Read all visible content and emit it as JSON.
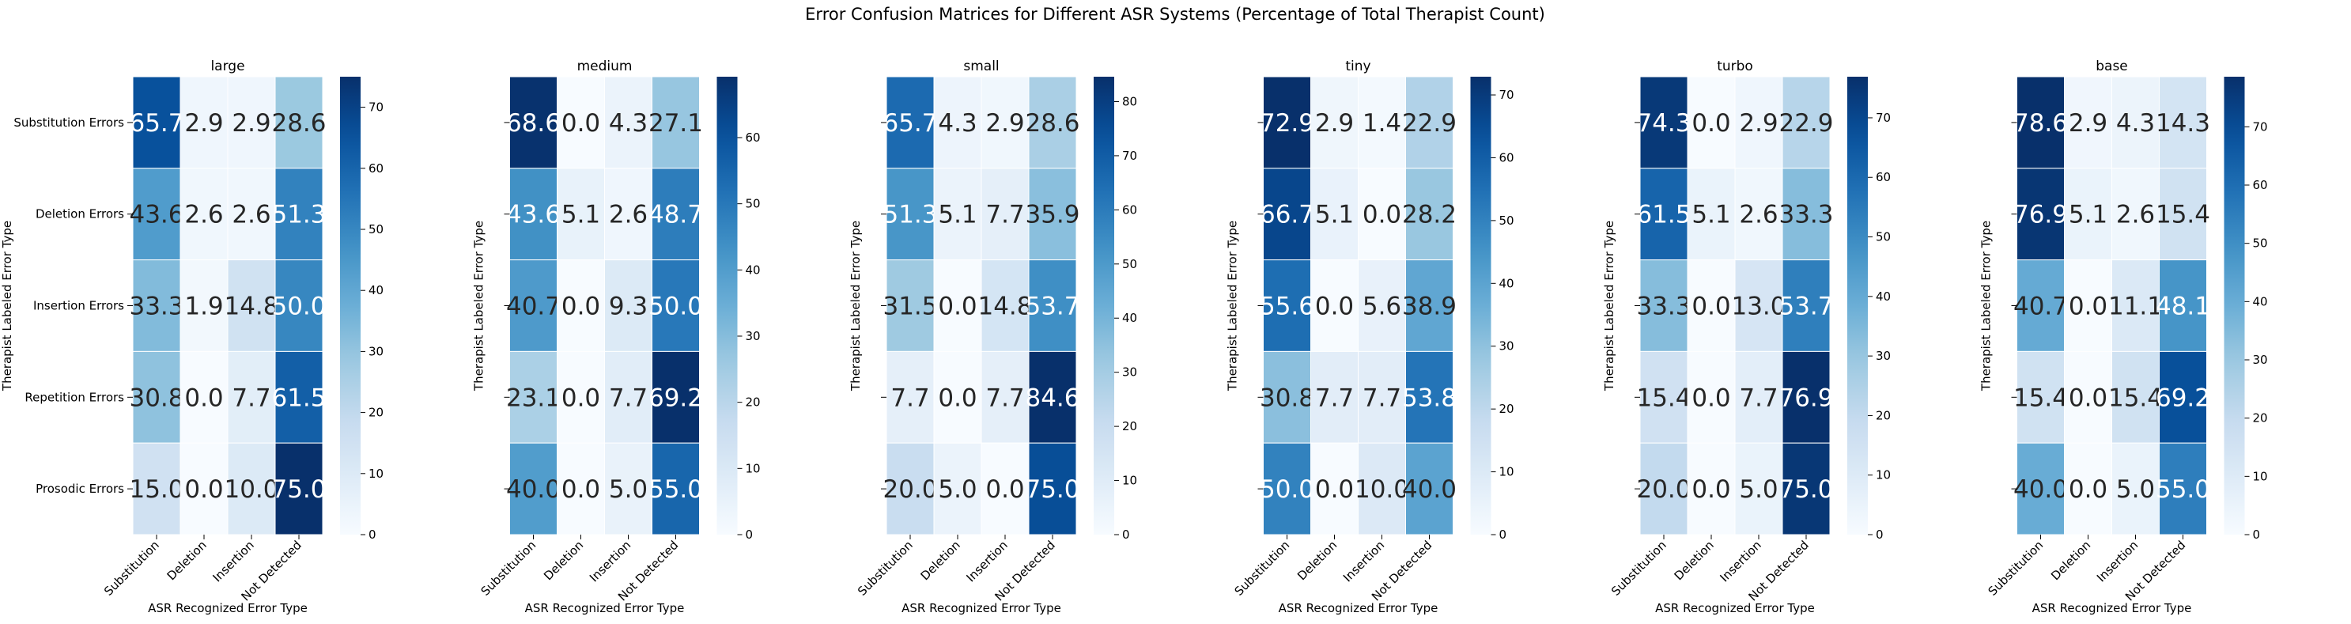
{
  "chart_data": {
    "type": "heatmap",
    "title": "Error Confusion Matrices for Different ASR Systems (Percentage of Total Therapist Count)",
    "xlabel": "ASR Recognized Error Type",
    "ylabel": "Therapist Labeled Error Type",
    "x_categories": [
      "Substitution",
      "Deletion",
      "Insertion",
      "Not Detected"
    ],
    "y_categories": [
      "Substitution Errors",
      "Deletion Errors",
      "Insertion Errors",
      "Repetition Errors",
      "Prosodic Errors"
    ],
    "colormap": "Blues",
    "panels": [
      {
        "name": "large",
        "cbar_ticks": [
          "0",
          "10",
          "20",
          "30",
          "40",
          "50",
          "60",
          "70"
        ],
        "cbar_range": [
          0,
          75.0
        ],
        "values": [
          [
            65.7,
            2.9,
            2.9,
            28.6
          ],
          [
            43.6,
            2.6,
            2.6,
            51.3
          ],
          [
            33.3,
            1.9,
            14.8,
            50.0
          ],
          [
            30.8,
            0.0,
            7.7,
            61.5
          ],
          [
            15.0,
            0.0,
            10.0,
            75.0
          ]
        ],
        "labels": [
          [
            "65.7",
            "2.9",
            "2.9",
            "28.6"
          ],
          [
            "43.6",
            "2.6",
            "2.6",
            "51.3"
          ],
          [
            "33.3",
            "1.9",
            "14.8",
            "50.0"
          ],
          [
            "30.8",
            "0.0",
            "7.7",
            "61.5"
          ],
          [
            "15.0",
            "0.0",
            "10.0",
            "75.0"
          ]
        ]
      },
      {
        "name": "medium",
        "cbar_ticks": [
          "0",
          "10",
          "20",
          "30",
          "40",
          "50",
          "60"
        ],
        "cbar_range": [
          0,
          69.2
        ],
        "values": [
          [
            68.6,
            0.0,
            4.3,
            27.1
          ],
          [
            43.6,
            5.1,
            2.6,
            48.7
          ],
          [
            40.7,
            0.0,
            9.3,
            50.0
          ],
          [
            23.1,
            0.0,
            7.7,
            69.2
          ],
          [
            40.0,
            0.0,
            5.0,
            55.0
          ]
        ],
        "labels": [
          [
            "68.6",
            "0.0",
            "4.3",
            "27.1"
          ],
          [
            "43.6",
            "5.1",
            "2.6",
            "48.7"
          ],
          [
            "40.7",
            "0.0",
            "9.3",
            "50.0"
          ],
          [
            "23.1",
            "0.0",
            "7.7",
            "69.2"
          ],
          [
            "40.0",
            "0.0",
            "5.0",
            "55.0"
          ]
        ]
      },
      {
        "name": "small",
        "cbar_ticks": [
          "0",
          "10",
          "20",
          "30",
          "40",
          "50",
          "60",
          "70",
          "80"
        ],
        "cbar_range": [
          0,
          84.6
        ],
        "values": [
          [
            65.7,
            4.3,
            2.9,
            28.6
          ],
          [
            51.3,
            5.1,
            7.7,
            35.9
          ],
          [
            31.5,
            0.0,
            14.8,
            53.7
          ],
          [
            7.7,
            0.0,
            7.7,
            84.6
          ],
          [
            20.0,
            5.0,
            0.0,
            75.0
          ]
        ],
        "labels": [
          [
            "65.7",
            "4.3",
            "2.9",
            "28.6"
          ],
          [
            "51.3",
            "5.1",
            "7.7",
            "35.9"
          ],
          [
            "31.5",
            "0.0",
            "14.8",
            "53.7"
          ],
          [
            "7.7",
            "0.0",
            "7.7",
            "84.6"
          ],
          [
            "20.0",
            "5.0",
            "0.0",
            "75.0"
          ]
        ]
      },
      {
        "name": "tiny",
        "cbar_ticks": [
          "0",
          "10",
          "20",
          "30",
          "40",
          "50",
          "60",
          "70"
        ],
        "cbar_range": [
          0,
          72.9
        ],
        "values": [
          [
            72.9,
            2.9,
            1.4,
            22.9
          ],
          [
            66.7,
            5.1,
            0.0,
            28.2
          ],
          [
            55.6,
            0.0,
            5.6,
            38.9
          ],
          [
            30.8,
            7.7,
            7.7,
            53.8
          ],
          [
            50.0,
            0.0,
            10.0,
            40.0
          ]
        ],
        "labels": [
          [
            "72.9",
            "2.9",
            "1.4",
            "22.9"
          ],
          [
            "66.7",
            "5.1",
            "0.0",
            "28.2"
          ],
          [
            "55.6",
            "0.0",
            "5.6",
            "38.9"
          ],
          [
            "30.8",
            "7.7",
            "7.7",
            "53.8"
          ],
          [
            "50.0",
            "0.0",
            "10.0",
            "40.0"
          ]
        ]
      },
      {
        "name": "turbo",
        "cbar_ticks": [
          "0",
          "10",
          "20",
          "30",
          "40",
          "50",
          "60",
          "70"
        ],
        "cbar_range": [
          0,
          76.9
        ],
        "values": [
          [
            74.3,
            0.0,
            2.9,
            22.9
          ],
          [
            61.5,
            5.1,
            2.6,
            33.3
          ],
          [
            33.3,
            0.0,
            13.0,
            53.7
          ],
          [
            15.4,
            0.0,
            7.7,
            76.9
          ],
          [
            20.0,
            0.0,
            5.0,
            75.0
          ]
        ],
        "labels": [
          [
            "74.3",
            "0.0",
            "2.9",
            "22.9"
          ],
          [
            "61.5",
            "5.1",
            "2.6",
            "33.3"
          ],
          [
            "33.3",
            "0.0",
            "13.0",
            "53.7"
          ],
          [
            "15.4",
            "0.0",
            "7.7",
            "76.9"
          ],
          [
            "20.0",
            "0.0",
            "5.0",
            "75.0"
          ]
        ]
      },
      {
        "name": "base",
        "cbar_ticks": [
          "0",
          "10",
          "20",
          "30",
          "40",
          "50",
          "60",
          "70"
        ],
        "cbar_range": [
          0,
          78.6
        ],
        "values": [
          [
            78.6,
            2.9,
            4.3,
            14.3
          ],
          [
            76.9,
            5.1,
            2.6,
            15.4
          ],
          [
            40.7,
            0.0,
            11.1,
            48.1
          ],
          [
            15.4,
            0.0,
            15.4,
            69.2
          ],
          [
            40.0,
            0.0,
            5.0,
            55.0
          ]
        ],
        "labels": [
          [
            "78.6",
            "2.9",
            "4.3",
            "14.3"
          ],
          [
            "76.9",
            "5.1",
            "2.6",
            "15.4"
          ],
          [
            "40.7",
            "0.0",
            "11.1",
            "48.1"
          ],
          [
            "15.4",
            "0.0",
            "15.4",
            "69.2"
          ],
          [
            "40.0",
            "0.0",
            "5.0",
            "55.0"
          ]
        ]
      }
    ]
  }
}
